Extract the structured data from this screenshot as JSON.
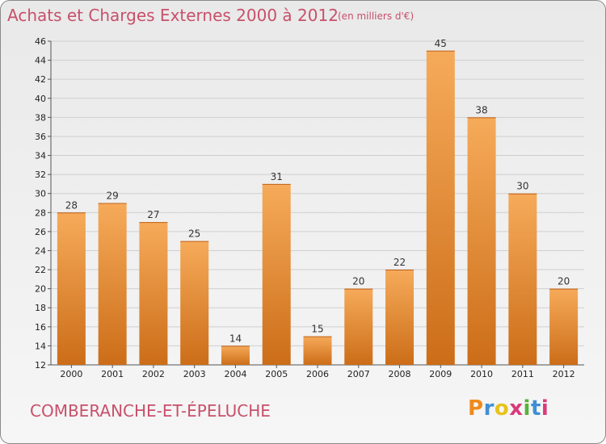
{
  "header": {
    "title": "Achats et Charges Externes 2000 à 2012",
    "subtitle": "(en milliers d'€)"
  },
  "footer": {
    "commune": "COMBERANCHE-ET-ÉPELUCHE",
    "logo_text": "Proxiti"
  },
  "colors": {
    "title": "#c8506a",
    "bar_light": "#f6ab5a",
    "bar_dark": "#cc6d18",
    "logo": [
      "#f08a1c",
      "#3f8fd4",
      "#e8c21a",
      "#d93a7a",
      "#58b13c",
      "#3f8fd4",
      "#d93a7a"
    ]
  },
  "chart_data": {
    "type": "bar",
    "title": "Achats et Charges Externes 2000 à 2012",
    "subtitle": "(en milliers d'€)",
    "categories": [
      "2000",
      "2001",
      "2002",
      "2003",
      "2004",
      "2005",
      "2006",
      "2007",
      "2008",
      "2009",
      "2010",
      "2011",
      "2012"
    ],
    "values": [
      28,
      29,
      27,
      25,
      14,
      31,
      15,
      20,
      22,
      45,
      38,
      30,
      20
    ],
    "ylim": [
      12,
      46
    ],
    "yticks": [
      12,
      14,
      16,
      18,
      20,
      22,
      24,
      26,
      28,
      30,
      32,
      34,
      36,
      38,
      40,
      42,
      44,
      46
    ],
    "grid": true,
    "xlabel": "",
    "ylabel": ""
  }
}
